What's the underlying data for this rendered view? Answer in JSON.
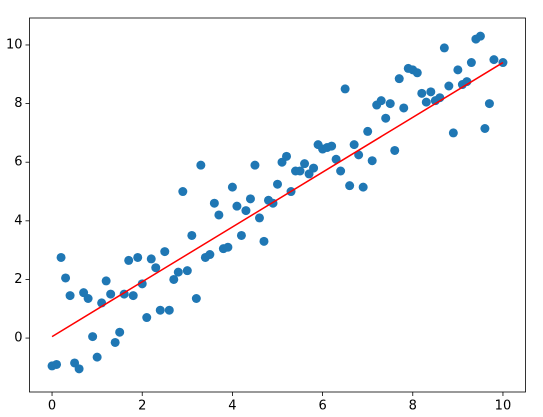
{
  "chart_data": {
    "type": "scatter",
    "xlim": [
      -0.5,
      10.5
    ],
    "xticks": [
      0,
      2,
      4,
      6,
      8,
      10
    ],
    "ylim": [
      -1.84,
      10.92
    ],
    "yticks": [
      0,
      2,
      4,
      6,
      8,
      10
    ],
    "series": [
      {
        "type": "scatter",
        "color": "#1f77b4",
        "x": [
          0,
          0.1,
          0.2,
          0.3,
          0.4,
          0.5,
          0.6,
          0.7,
          0.8,
          0.9,
          1.0,
          1.1,
          1.2,
          1.3,
          1.4,
          1.5,
          1.6,
          1.7,
          1.8,
          1.9,
          2.0,
          2.1,
          2.2,
          2.3,
          2.4,
          2.5,
          2.6,
          2.7,
          2.8,
          2.9,
          3.0,
          3.1,
          3.2,
          3.3,
          3.4,
          3.5,
          3.6,
          3.7,
          3.8,
          3.9,
          4.0,
          4.1,
          4.2,
          4.3,
          4.4,
          4.5,
          4.6,
          4.7,
          4.8,
          4.9,
          5.0,
          5.1,
          5.2,
          5.3,
          5.4,
          5.5,
          5.6,
          5.7,
          5.8,
          5.9,
          6.0,
          6.1,
          6.2,
          6.3,
          6.4,
          6.5,
          6.6,
          6.7,
          6.8,
          6.9,
          7.0,
          7.1,
          7.2,
          7.3,
          7.4,
          7.5,
          7.6,
          7.7,
          7.8,
          7.9,
          8.0,
          8.1,
          8.2,
          8.3,
          8.4,
          8.5,
          8.6,
          8.7,
          8.8,
          8.9,
          9.0,
          9.1,
          9.2,
          9.3,
          9.4,
          9.5,
          9.6,
          9.7,
          9.8,
          10.0
        ],
        "values": [
          -0.95,
          -0.9,
          2.75,
          2.05,
          1.45,
          -0.85,
          -1.05,
          1.55,
          1.35,
          0.05,
          -0.65,
          1.2,
          1.95,
          1.5,
          -0.15,
          0.2,
          1.5,
          2.65,
          1.45,
          2.75,
          1.85,
          0.7,
          2.7,
          2.4,
          0.95,
          2.95,
          0.95,
          2.0,
          2.25,
          5.0,
          2.3,
          3.5,
          1.35,
          5.9,
          2.75,
          2.85,
          4.6,
          4.2,
          3.05,
          3.1,
          5.15,
          4.5,
          3.5,
          4.35,
          4.75,
          5.9,
          4.1,
          3.3,
          4.7,
          4.6,
          5.25,
          6.0,
          6.2,
          5.0,
          5.7,
          5.7,
          5.95,
          5.6,
          5.8,
          6.6,
          6.45,
          6.5,
          6.55,
          6.1,
          5.7,
          8.5,
          5.2,
          6.6,
          6.25,
          5.15,
          7.05,
          6.05,
          7.95,
          8.1,
          7.5,
          8.0,
          6.4,
          8.85,
          7.85,
          9.2,
          9.15,
          9.05,
          8.35,
          8.05,
          8.4,
          8.1,
          8.2,
          9.9,
          8.6,
          7.0,
          9.15,
          8.65,
          8.75,
          9.4,
          10.2,
          10.3,
          7.15,
          8.0,
          9.5,
          9.4
        ]
      },
      {
        "type": "line",
        "color": "#ff0000",
        "x": [
          0,
          10
        ],
        "values": [
          0.05,
          9.4
        ]
      }
    ]
  }
}
